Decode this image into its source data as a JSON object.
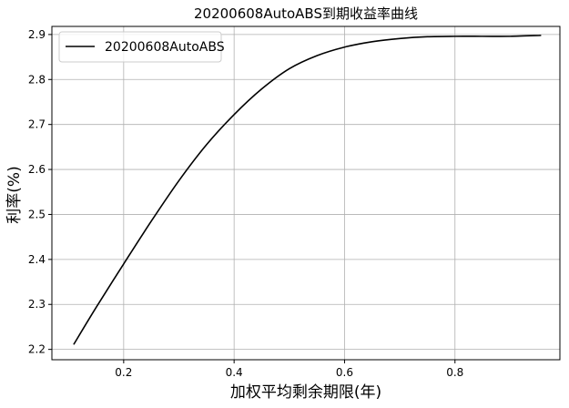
{
  "chart_data": {
    "type": "line",
    "title": "20200608AutoABS到期收益率曲线",
    "xlabel": "加权平均剩余期限(年)",
    "ylabel": "利率(%)",
    "xlim": [
      0.07,
      0.99
    ],
    "ylim": [
      2.177,
      2.918
    ],
    "xticks": [
      0.2,
      0.4,
      0.6,
      0.8
    ],
    "xtick_labels": [
      "0.2",
      "0.4",
      "0.6",
      "0.8"
    ],
    "yticks": [
      2.2,
      2.3,
      2.4,
      2.5,
      2.6,
      2.7,
      2.8,
      2.9
    ],
    "ytick_labels": [
      "2.2",
      "2.3",
      "2.4",
      "2.5",
      "2.6",
      "2.7",
      "2.8",
      "2.9"
    ],
    "grid": true,
    "legend_position": "upper-left",
    "series": [
      {
        "name": "20200608AutoABS",
        "color": "#000000",
        "x": [
          0.11,
          0.15,
          0.2,
          0.25,
          0.3,
          0.35,
          0.4,
          0.45,
          0.5,
          0.55,
          0.6,
          0.65,
          0.7,
          0.75,
          0.8,
          0.85,
          0.9,
          0.955
        ],
        "y": [
          2.212,
          2.293,
          2.39,
          2.485,
          2.575,
          2.655,
          2.722,
          2.779,
          2.824,
          2.853,
          2.872,
          2.884,
          2.891,
          2.895,
          2.896,
          2.896,
          2.896,
          2.898
        ]
      }
    ]
  }
}
